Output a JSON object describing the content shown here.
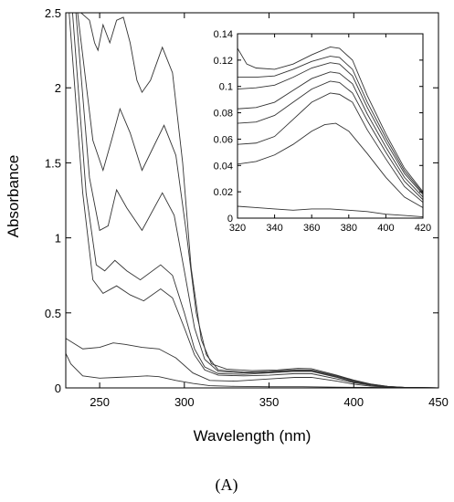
{
  "chart_data": [
    {
      "type": "line",
      "role": "main",
      "xlabel": "Wavelength (nm)",
      "ylabel": "Absorbance",
      "xlim": [
        230,
        450
      ],
      "ylim": [
        0,
        2.5
      ],
      "x_ticks": [
        250,
        300,
        350,
        400,
        450
      ],
      "y_ticks": [
        0,
        0.5,
        1,
        1.5,
        2,
        2.5
      ],
      "x_tick_labels": [
        "250",
        "300",
        "350",
        "400",
        "450"
      ],
      "y_tick_labels": [
        "0",
        "0.5",
        "1",
        "1.5",
        "2",
        "2.5"
      ],
      "grid": false,
      "legend": "none",
      "series": [
        {
          "points": [
            [
              230,
              0.23
            ],
            [
              233,
              0.16
            ],
            [
              240,
              0.08
            ],
            [
              250,
              0.065
            ],
            [
              260,
              0.07
            ],
            [
              270,
              0.075
            ],
            [
              278,
              0.08
            ],
            [
              285,
              0.075
            ],
            [
              295,
              0.05
            ],
            [
              305,
              0.03
            ],
            [
              315,
              0.015
            ],
            [
              330,
              0.01
            ],
            [
              350,
              0.008
            ],
            [
              370,
              0.008
            ],
            [
              390,
              0.005
            ],
            [
              410,
              0.003
            ],
            [
              430,
              0.001
            ],
            [
              450,
              0
            ]
          ]
        },
        {
          "points": [
            [
              230,
              0.33
            ],
            [
              240,
              0.26
            ],
            [
              250,
              0.27
            ],
            [
              258,
              0.3
            ],
            [
              265,
              0.29
            ],
            [
              275,
              0.27
            ],
            [
              285,
              0.26
            ],
            [
              295,
              0.2
            ],
            [
              305,
              0.1
            ],
            [
              315,
              0.05
            ],
            [
              330,
              0.045
            ],
            [
              350,
              0.06
            ],
            [
              365,
              0.07
            ],
            [
              375,
              0.07
            ],
            [
              390,
              0.045
            ],
            [
              400,
              0.025
            ],
            [
              410,
              0.012
            ],
            [
              420,
              0.005
            ],
            [
              430,
              0.002
            ],
            [
              450,
              0
            ]
          ]
        },
        {
          "points": [
            [
              232,
              2.5
            ],
            [
              240,
              1.3
            ],
            [
              246,
              0.72
            ],
            [
              252,
              0.63
            ],
            [
              260,
              0.68
            ],
            [
              268,
              0.62
            ],
            [
              276,
              0.58
            ],
            [
              286,
              0.66
            ],
            [
              293,
              0.6
            ],
            [
              300,
              0.4
            ],
            [
              306,
              0.22
            ],
            [
              312,
              0.12
            ],
            [
              320,
              0.085
            ],
            [
              335,
              0.08
            ],
            [
              350,
              0.085
            ],
            [
              365,
              0.095
            ],
            [
              375,
              0.095
            ],
            [
              390,
              0.06
            ],
            [
              400,
              0.035
            ],
            [
              410,
              0.017
            ],
            [
              420,
              0.007
            ],
            [
              430,
              0.002
            ],
            [
              450,
              0
            ]
          ]
        },
        {
          "points": [
            [
              234,
              2.5
            ],
            [
              242,
              1.3
            ],
            [
              248,
              0.82
            ],
            [
              253,
              0.78
            ],
            [
              259,
              0.85
            ],
            [
              266,
              0.78
            ],
            [
              274,
              0.72
            ],
            [
              286,
              0.82
            ],
            [
              293,
              0.75
            ],
            [
              300,
              0.5
            ],
            [
              306,
              0.26
            ],
            [
              312,
              0.14
            ],
            [
              320,
              0.095
            ],
            [
              335,
              0.09
            ],
            [
              350,
              0.1
            ],
            [
              365,
              0.11
            ],
            [
              375,
              0.11
            ],
            [
              390,
              0.07
            ],
            [
              400,
              0.04
            ],
            [
              410,
              0.02
            ],
            [
              420,
              0.008
            ],
            [
              430,
              0.002
            ],
            [
              450,
              0
            ]
          ]
        },
        {
          "points": [
            [
              236,
              2.5
            ],
            [
              244,
              1.4
            ],
            [
              250,
              1.05
            ],
            [
              255,
              1.08
            ],
            [
              260,
              1.32
            ],
            [
              266,
              1.2
            ],
            [
              275,
              1.05
            ],
            [
              287,
              1.3
            ],
            [
              294,
              1.15
            ],
            [
              300,
              0.78
            ],
            [
              306,
              0.4
            ],
            [
              312,
              0.19
            ],
            [
              320,
              0.11
            ],
            [
              335,
              0.1
            ],
            [
              350,
              0.105
            ],
            [
              365,
              0.115
            ],
            [
              375,
              0.115
            ],
            [
              390,
              0.075
            ],
            [
              400,
              0.045
            ],
            [
              410,
              0.022
            ],
            [
              420,
              0.009
            ],
            [
              430,
              0.003
            ],
            [
              450,
              0
            ]
          ]
        },
        {
          "points": [
            [
              237,
              2.5
            ],
            [
              246,
              1.65
            ],
            [
              252,
              1.45
            ],
            [
              257,
              1.65
            ],
            [
              262,
              1.86
            ],
            [
              268,
              1.7
            ],
            [
              275,
              1.45
            ],
            [
              288,
              1.75
            ],
            [
              295,
              1.55
            ],
            [
              301,
              1.05
            ],
            [
              307,
              0.5
            ],
            [
              313,
              0.22
            ],
            [
              320,
              0.12
            ],
            [
              335,
              0.105
            ],
            [
              350,
              0.11
            ],
            [
              365,
              0.12
            ],
            [
              375,
              0.12
            ],
            [
              390,
              0.08
            ],
            [
              400,
              0.05
            ],
            [
              410,
              0.025
            ],
            [
              420,
              0.01
            ],
            [
              430,
              0.003
            ],
            [
              450,
              0
            ]
          ]
        },
        {
          "points": [
            [
              239,
              2.5
            ],
            [
              244,
              2.45
            ],
            [
              247,
              2.3
            ],
            [
              249,
              2.25
            ],
            [
              252,
              2.42
            ],
            [
              256,
              2.3
            ],
            [
              260,
              2.45
            ],
            [
              264,
              2.47
            ],
            [
              268,
              2.3
            ],
            [
              272,
              2.05
            ],
            [
              275,
              1.97
            ],
            [
              280,
              2.05
            ],
            [
              287,
              2.27
            ],
            [
              293,
              2.1
            ],
            [
              299,
              1.5
            ],
            [
              304,
              0.8
            ],
            [
              310,
              0.32
            ],
            [
              316,
              0.16
            ],
            [
              325,
              0.125
            ],
            [
              340,
              0.115
            ],
            [
              355,
              0.12
            ],
            [
              367,
              0.13
            ],
            [
              375,
              0.128
            ],
            [
              390,
              0.085
            ],
            [
              400,
              0.052
            ],
            [
              410,
              0.026
            ],
            [
              420,
              0.01
            ],
            [
              430,
              0.003
            ],
            [
              450,
              0
            ]
          ]
        }
      ]
    },
    {
      "type": "line",
      "role": "inset",
      "xlim": [
        320,
        420
      ],
      "ylim": [
        0,
        0.14
      ],
      "x_ticks": [
        320,
        340,
        360,
        380,
        400,
        420
      ],
      "y_ticks": [
        0,
        0.02,
        0.04,
        0.06,
        0.08,
        0.1,
        0.12,
        0.14
      ],
      "x_tick_labels": [
        "320",
        "340",
        "360",
        "380",
        "400",
        "420"
      ],
      "y_tick_labels": [
        "0",
        "0.02",
        "0.04",
        "0.06",
        "0.08",
        "0.1",
        "0.12",
        "0.14"
      ],
      "grid": false,
      "legend": "none",
      "series": [
        {
          "points": [
            [
              320,
              0.009
            ],
            [
              330,
              0.008
            ],
            [
              340,
              0.007
            ],
            [
              350,
              0.006
            ],
            [
              360,
              0.007
            ],
            [
              370,
              0.007
            ],
            [
              380,
              0.006
            ],
            [
              390,
              0.005
            ],
            [
              400,
              0.003
            ],
            [
              410,
              0.002
            ],
            [
              420,
              0.001
            ]
          ]
        },
        {
          "points": [
            [
              320,
              0.041
            ],
            [
              330,
              0.043
            ],
            [
              340,
              0.048
            ],
            [
              350,
              0.056
            ],
            [
              360,
              0.066
            ],
            [
              367,
              0.071
            ],
            [
              373,
              0.072
            ],
            [
              380,
              0.066
            ],
            [
              390,
              0.049
            ],
            [
              400,
              0.031
            ],
            [
              410,
              0.016
            ],
            [
              420,
              0.008
            ]
          ]
        },
        {
          "points": [
            [
              320,
              0.056
            ],
            [
              330,
              0.057
            ],
            [
              340,
              0.062
            ],
            [
              350,
              0.075
            ],
            [
              360,
              0.088
            ],
            [
              370,
              0.095
            ],
            [
              375,
              0.094
            ],
            [
              382,
              0.088
            ],
            [
              390,
              0.067
            ],
            [
              400,
              0.045
            ],
            [
              410,
              0.024
            ],
            [
              420,
              0.012
            ]
          ]
        },
        {
          "points": [
            [
              320,
              0.072
            ],
            [
              330,
              0.073
            ],
            [
              340,
              0.078
            ],
            [
              350,
              0.088
            ],
            [
              360,
              0.098
            ],
            [
              370,
              0.104
            ],
            [
              375,
              0.103
            ],
            [
              382,
              0.095
            ],
            [
              390,
              0.074
            ],
            [
              400,
              0.05
            ],
            [
              410,
              0.028
            ],
            [
              420,
              0.014
            ]
          ]
        },
        {
          "points": [
            [
              320,
              0.083
            ],
            [
              330,
              0.084
            ],
            [
              340,
              0.088
            ],
            [
              350,
              0.097
            ],
            [
              360,
              0.106
            ],
            [
              370,
              0.111
            ],
            [
              375,
              0.11
            ],
            [
              382,
              0.102
            ],
            [
              390,
              0.079
            ],
            [
              400,
              0.054
            ],
            [
              410,
              0.031
            ],
            [
              420,
              0.016
            ]
          ]
        },
        {
          "points": [
            [
              320,
              0.098
            ],
            [
              330,
              0.099
            ],
            [
              340,
              0.101
            ],
            [
              350,
              0.107
            ],
            [
              360,
              0.114
            ],
            [
              370,
              0.118
            ],
            [
              375,
              0.117
            ],
            [
              382,
              0.108
            ],
            [
              390,
              0.084
            ],
            [
              400,
              0.058
            ],
            [
              410,
              0.034
            ],
            [
              420,
              0.018
            ]
          ]
        },
        {
          "points": [
            [
              320,
              0.107
            ],
            [
              330,
              0.107
            ],
            [
              340,
              0.108
            ],
            [
              350,
              0.113
            ],
            [
              360,
              0.119
            ],
            [
              370,
              0.123
            ],
            [
              375,
              0.122
            ],
            [
              382,
              0.113
            ],
            [
              390,
              0.088
            ],
            [
              400,
              0.061
            ],
            [
              410,
              0.036
            ],
            [
              420,
              0.019
            ]
          ]
        },
        {
          "points": [
            [
              320,
              0.129
            ],
            [
              325,
              0.117
            ],
            [
              330,
              0.114
            ],
            [
              340,
              0.113
            ],
            [
              350,
              0.117
            ],
            [
              360,
              0.124
            ],
            [
              370,
              0.13
            ],
            [
              375,
              0.129
            ],
            [
              382,
              0.12
            ],
            [
              390,
              0.093
            ],
            [
              400,
              0.064
            ],
            [
              410,
              0.038
            ],
            [
              420,
              0.02
            ]
          ]
        }
      ]
    }
  ],
  "panel_label": "(A)"
}
